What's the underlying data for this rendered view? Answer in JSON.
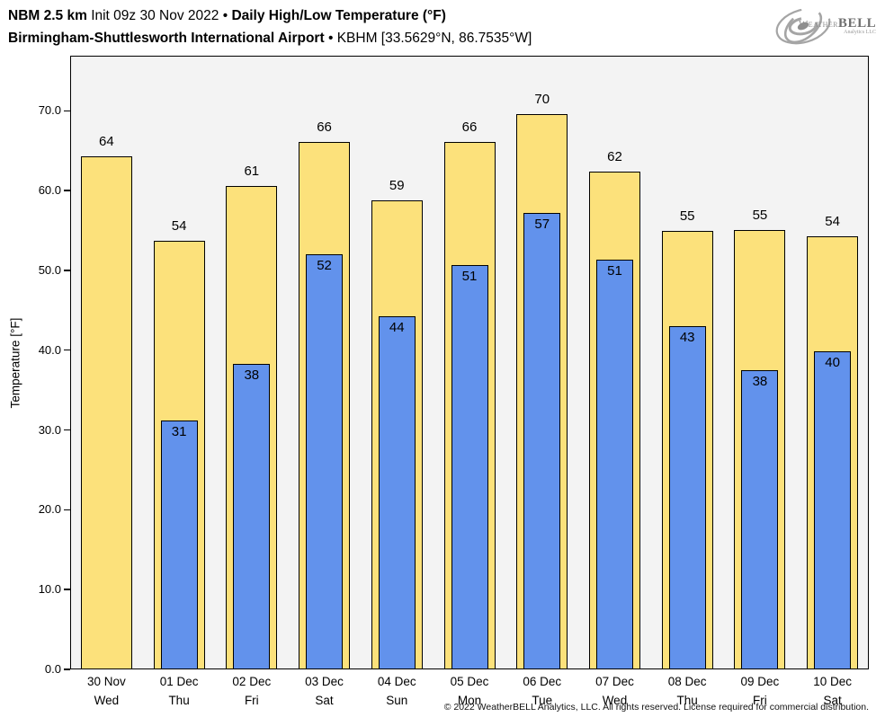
{
  "header": {
    "model": "NBM 2.5 km",
    "init": "Init 09z 30 Nov 2022",
    "bullet1": "•",
    "product": "Daily High/Low Temperature (°F)",
    "station": "Birmingham-Shuttlesworth International Airport",
    "bullet2": "•",
    "station_meta": "KBHM [33.5629°N, 86.7535°W]"
  },
  "logo": {
    "weather": "Weather",
    "bell": "BELL",
    "sub": "Analytics LLC"
  },
  "footer": {
    "copyright": "© 2022 WeatherBELL Analytics, LLC. All rights reserved. License required for commercial distribution."
  },
  "chart_data": {
    "type": "bar",
    "title": "NBM 2.5 km Init 09z 30 Nov 2022 • Daily High/Low Temperature (°F)",
    "subtitle": "Birmingham-Shuttlesworth International Airport • KBHM [33.5629°N, 86.7535°W]",
    "xlabel": "",
    "ylabel": "Temperature [°F]",
    "ylim": [
      0,
      76.9
    ],
    "yticks": [
      0,
      10,
      20,
      30,
      40,
      50,
      60,
      70
    ],
    "ytick_labels": [
      "0.0",
      "10.0",
      "20.0",
      "30.0",
      "40.0",
      "50.0",
      "60.0",
      "70.0"
    ],
    "grid": false,
    "legend": "none",
    "plot_background": "#F3F3F3",
    "bar_edge_color": "#000000",
    "categories": [
      {
        "date": "30 Nov",
        "day": "Wed"
      },
      {
        "date": "01 Dec",
        "day": "Thu"
      },
      {
        "date": "02 Dec",
        "day": "Fri"
      },
      {
        "date": "03 Dec",
        "day": "Sat"
      },
      {
        "date": "04 Dec",
        "day": "Sun"
      },
      {
        "date": "05 Dec",
        "day": "Mon"
      },
      {
        "date": "06 Dec",
        "day": "Tue"
      },
      {
        "date": "07 Dec",
        "day": "Wed"
      },
      {
        "date": "08 Dec",
        "day": "Thu"
      },
      {
        "date": "09 Dec",
        "day": "Fri"
      },
      {
        "date": "10 Dec",
        "day": "Sat"
      }
    ],
    "series": [
      {
        "name": "Daily High",
        "color": "#FCE17B",
        "labels": [
          64,
          54,
          61,
          66,
          59,
          66,
          70,
          62,
          55,
          55,
          54
        ],
        "values": [
          64.3,
          53.7,
          60.6,
          66.1,
          58.8,
          66.1,
          69.6,
          62.4,
          54.9,
          55.1,
          54.3
        ]
      },
      {
        "name": "Daily Low",
        "color": "#6292EC",
        "labels": [
          null,
          31,
          38,
          52,
          44,
          51,
          57,
          51,
          43,
          38,
          40
        ],
        "values": [
          null,
          31.2,
          38.3,
          52.0,
          44.2,
          50.7,
          57.2,
          51.3,
          43.0,
          37.5,
          39.9
        ]
      }
    ]
  }
}
